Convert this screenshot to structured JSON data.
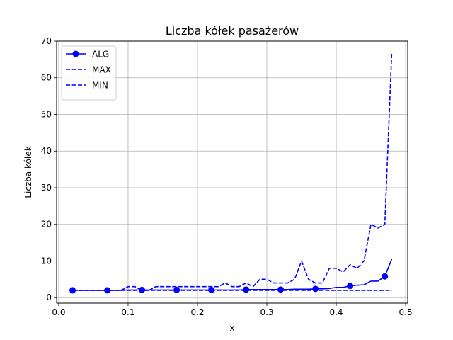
{
  "chart_data": {
    "type": "line",
    "title": "Liczba kółek pasażerów",
    "xlabel": "x",
    "ylabel": "Liczba kółek",
    "xlim": [
      -0.003,
      0.503
    ],
    "ylim": [
      -1.5,
      70
    ],
    "xticks": [
      0.0,
      0.1,
      0.2,
      0.3,
      0.4,
      0.5
    ],
    "xtick_labels": [
      "0.0",
      "0.1",
      "0.2",
      "0.3",
      "0.4",
      "0.5"
    ],
    "yticks": [
      0,
      10,
      20,
      30,
      40,
      50,
      60,
      70
    ],
    "ytick_labels": [
      "0",
      "10",
      "20",
      "30",
      "40",
      "50",
      "60",
      "70"
    ],
    "grid": true,
    "legend_position": "top-left",
    "x": [
      0.02,
      0.03,
      0.04,
      0.05,
      0.06,
      0.07,
      0.08,
      0.09,
      0.1,
      0.11,
      0.12,
      0.13,
      0.14,
      0.15,
      0.16,
      0.17,
      0.18,
      0.19,
      0.2,
      0.21,
      0.22,
      0.23,
      0.24,
      0.25,
      0.26,
      0.27,
      0.28,
      0.29,
      0.3,
      0.31,
      0.32,
      0.33,
      0.34,
      0.35,
      0.36,
      0.37,
      0.38,
      0.39,
      0.4,
      0.41,
      0.42,
      0.43,
      0.44,
      0.45,
      0.46,
      0.47,
      0.48
    ],
    "series": [
      {
        "name": "ALG",
        "style": "solid",
        "marker": "circle",
        "marker_every": 5,
        "color": "#0000ff",
        "values": [
          2.0,
          2.0,
          2.0,
          2.0,
          2.0,
          2.0,
          2.0,
          2.0,
          2.1,
          2.1,
          2.1,
          2.1,
          2.1,
          2.1,
          2.1,
          2.1,
          2.1,
          2.1,
          2.1,
          2.1,
          2.1,
          2.1,
          2.1,
          2.1,
          2.1,
          2.2,
          2.2,
          2.2,
          2.2,
          2.2,
          2.2,
          2.2,
          2.3,
          2.3,
          2.3,
          2.4,
          2.4,
          2.5,
          2.8,
          2.8,
          3.2,
          3.4,
          3.5,
          4.5,
          4.5,
          5.8,
          10.5
        ]
      },
      {
        "name": "MAX",
        "style": "dashed",
        "color": "#0000ff",
        "values": [
          2,
          2,
          2,
          2,
          2,
          2,
          2,
          2,
          3,
          3,
          2,
          2,
          3,
          3,
          3,
          3,
          3,
          3,
          3,
          3,
          3,
          3,
          4,
          3,
          3,
          4,
          3,
          5,
          5,
          4,
          4,
          4,
          5,
          10,
          5,
          4,
          4,
          8,
          8,
          7,
          9,
          8,
          10,
          20,
          19,
          20,
          67
        ]
      },
      {
        "name": "MIN",
        "style": "dashed",
        "color": "#0000ff",
        "values": [
          2,
          2,
          2,
          2,
          2,
          2,
          2,
          2,
          2,
          2,
          2,
          2,
          2,
          2,
          2,
          2,
          2,
          2,
          2,
          2,
          2,
          2,
          2,
          2,
          2,
          2,
          2,
          2,
          2,
          2,
          2,
          2,
          2,
          2,
          2,
          2,
          2,
          2,
          2,
          2,
          2,
          2,
          2,
          2,
          2,
          2,
          2
        ]
      }
    ]
  }
}
